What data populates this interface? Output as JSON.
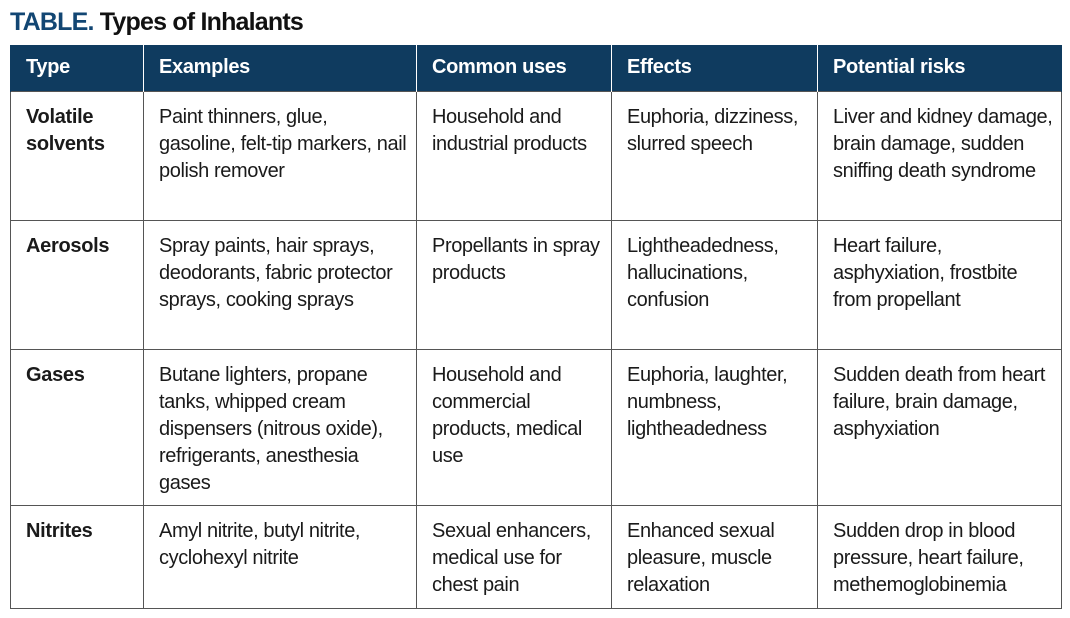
{
  "title": {
    "lead": "TABLE.",
    "rest": "Types of Inhalants"
  },
  "colors": {
    "header_bg": "#0f3b5f",
    "title_lead": "#124673",
    "border": "#555555"
  },
  "table": {
    "headers": [
      "Type",
      "Examples",
      "Common uses",
      "Effects",
      "Potential risks"
    ],
    "rows": [
      {
        "type": "Volatile solvents",
        "examples": "Paint thinners, glue, gasoline, felt-tip markers, nail polish remover",
        "uses": "Household and industrial products",
        "effects": "Euphoria, dizziness, slurred speech",
        "risks": "Liver and kidney damage, brain damage, sudden sniffing death syndrome"
      },
      {
        "type": "Aerosols",
        "examples": "Spray paints, hair sprays, deodorants, fabric protector sprays, cooking sprays",
        "uses": "Propellants in spray products",
        "effects": "Lightheadedness, hallucinations, confusion",
        "risks": "Heart failure, asphyxiation, frostbite from propellant"
      },
      {
        "type": "Gases",
        "examples": "Butane lighters, propane tanks, whipped cream dispensers (nitrous oxide), refrigerants, anesthesia gases",
        "uses": "Household and commercial products, medical use",
        "effects": "Euphoria, laughter, numbness, lightheadedness",
        "risks": "Sudden death from heart failure, brain damage, asphyxiation"
      },
      {
        "type": "Nitrites",
        "examples": "Amyl nitrite, butyl nitrite, cyclohexyl nitrite",
        "uses": "Sexual enhancers, medical use for chest pain",
        "effects": "Enhanced sexual pleasure, muscle relaxation",
        "risks": "Sudden drop in blood pressure, heart failure, methemoglobinemia"
      }
    ]
  }
}
